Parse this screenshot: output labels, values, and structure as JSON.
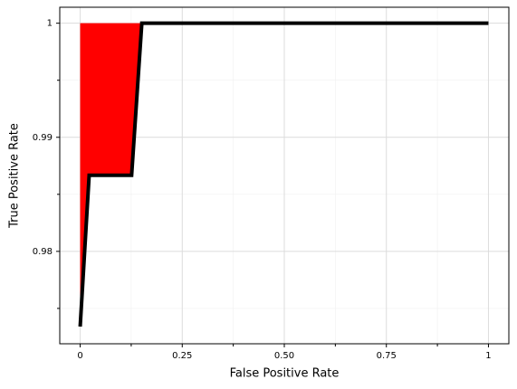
{
  "chart_data": {
    "type": "line",
    "x_label": "False Positive Rate",
    "y_label": "True Positive Rate",
    "x": [
      0,
      0.022,
      0.126,
      0.151,
      1
    ],
    "series": [
      {
        "color": "#000000",
        "values": [
          0.97341,
          0.98667,
          0.98667,
          1.0,
          1.0
        ],
        "fill_color": "#ff0000",
        "fill_to": 1
      }
    ],
    "xlim": [
      -0.05,
      1.05
    ],
    "ylim": [
      0.9719,
      1.0014
    ],
    "xticks": [
      0,
      0.25,
      {
        "value": 0.5,
        "label": "0.50"
      },
      0.75,
      1
    ],
    "yticks": [
      0.98,
      0.99,
      1
    ],
    "minor_xticks": [
      0.125,
      0.375,
      0.625,
      0.875
    ],
    "minor_yticks": [
      0.975,
      0.985,
      0.995
    ],
    "grid": true
  }
}
